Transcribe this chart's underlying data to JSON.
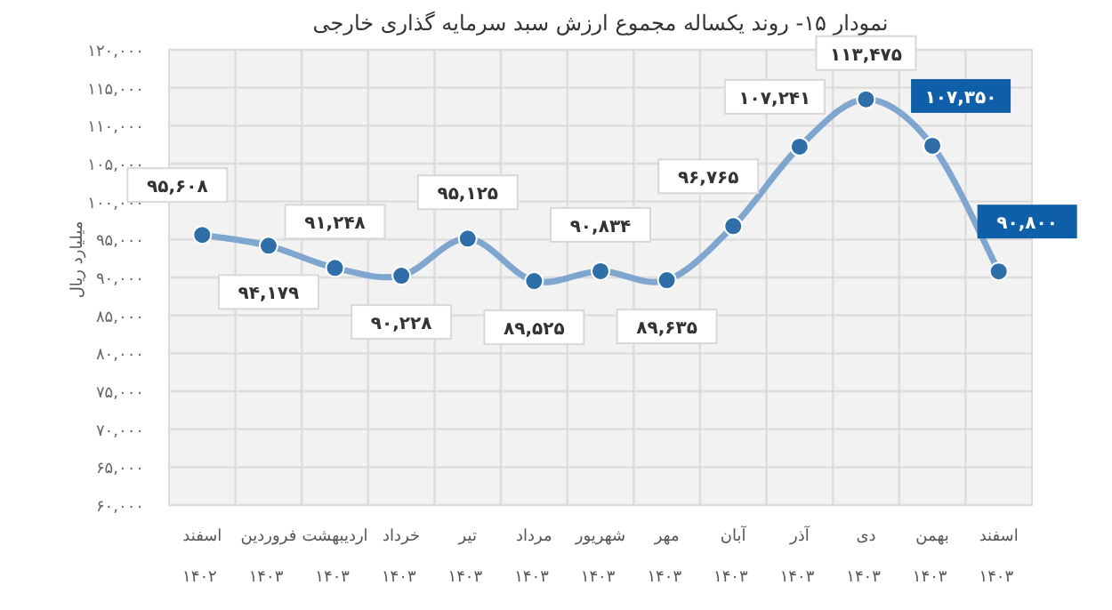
{
  "chart_data": {
    "type": "line",
    "title": "نمودار ۱۵- روند یکساله مجموع ارزش سبد سرمایه گذاری خارجی",
    "ylabel": "میلیارد ریال",
    "categories": [
      "اسفند ۱۴۰۲",
      "فروردین ۱۴۰۳",
      "اردیبهشت ۱۴۰۳",
      "خرداد ۱۴۰۳",
      "تیر ۱۴۰۳",
      "مرداد ۱۴۰۳",
      "شهریور ۱۴۰۳",
      "مهر ۱۴۰۳",
      "آبان ۱۴۰۳",
      "آذر ۱۴۰۳",
      "دی ۱۴۰۳",
      "بهمن ۱۴۰۳",
      "اسفند ۱۴۰۳"
    ],
    "series": [
      {
        "color": "#7fa6cf",
        "values": [
          95608,
          94179,
          91248,
          90228,
          95125,
          89525,
          90834,
          89635,
          96765,
          107241,
          113475,
          107350,
          90800
        ],
        "value_labels": [
          "۹۵,۶۰۸",
          "۹۴,۱۷۹",
          "۹۱,۲۴۸",
          "۹۰,۲۲۸",
          "۹۵,۱۲۵",
          "۸۹,۵۲۵",
          "۹۰,۸۳۴",
          "۸۹,۶۳۵",
          "۹۶,۷۶۵",
          "۱۰۷,۲۴۱",
          "۱۱۳,۴۷۵",
          "۱۰۷,۳۵۰",
          "۹۰,۸۰۰"
        ]
      }
    ],
    "ylim": [
      60000,
      120000
    ],
    "yticks": [
      {
        "value": 60000,
        "label": "۶۰,۰۰۰"
      },
      {
        "value": 65000,
        "label": "۶۵,۰۰۰"
      },
      {
        "value": 70000,
        "label": "۷۰,۰۰۰"
      },
      {
        "value": 75000,
        "label": "۷۵,۰۰۰"
      },
      {
        "value": 80000,
        "label": "۸۰,۰۰۰"
      },
      {
        "value": 85000,
        "label": "۸۵,۰۰۰"
      },
      {
        "value": 90000,
        "label": "۹۰,۰۰۰"
      },
      {
        "value": 95000,
        "label": "۹۵,۰۰۰"
      },
      {
        "value": 100000,
        "label": "۱۰۰,۰۰۰"
      },
      {
        "value": 105000,
        "label": "۱۰۵,۰۰۰"
      },
      {
        "value": 110000,
        "label": "۱۱۰,۰۰۰"
      },
      {
        "value": 115000,
        "label": "۱۱۵,۰۰۰"
      },
      {
        "value": 120000,
        "label": "۱۲۰,۰۰۰"
      }
    ],
    "grid": true,
    "marker": "circle",
    "line_style": "solid"
  }
}
